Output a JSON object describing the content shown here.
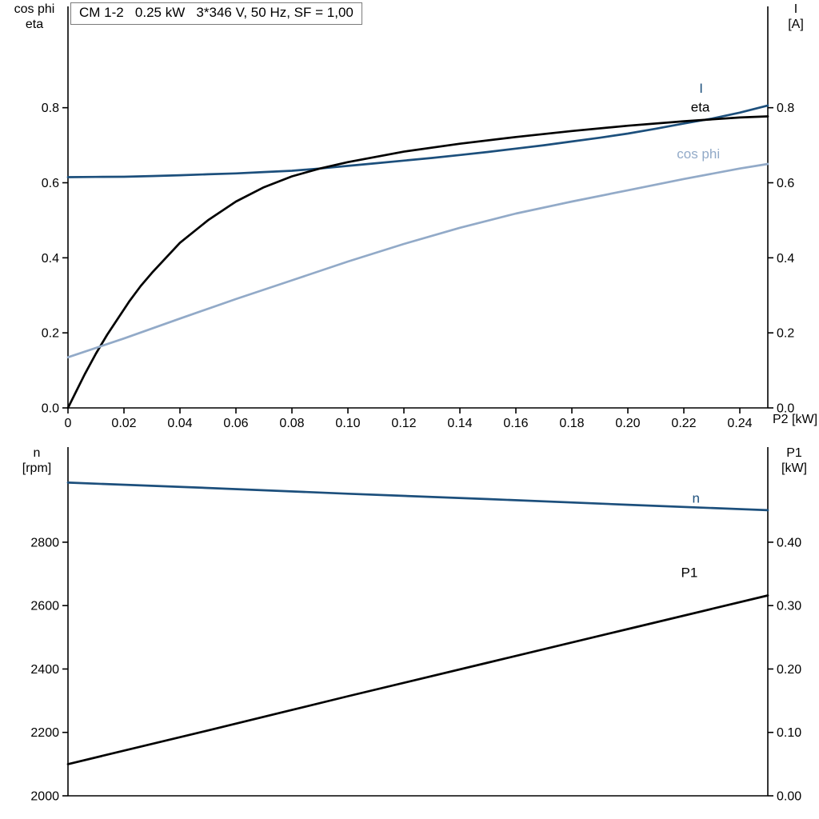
{
  "colors": {
    "dark_blue": "#1c4f7c",
    "light_blue": "#92aac8",
    "black": "#000000",
    "axis": "#000000"
  },
  "chart_data": [
    {
      "type": "line",
      "name": "chart-top-motor-electrical",
      "title": "CM 1-2   0.25 kW   3*346 V, 50 Hz, SF = 1,00",
      "xlabel": "P2 [kW]",
      "ylabel_left_line1": "cos phi",
      "ylabel_left_line2": "eta",
      "ylabel_right_line1": "I",
      "ylabel_right_line2": "[A]",
      "grid": false,
      "legend": "end-of-line labels",
      "xlim": [
        0,
        0.25
      ],
      "x_ticks": [
        0,
        0.02,
        0.04,
        0.06,
        0.08,
        0.1,
        0.12,
        0.14,
        0.16,
        0.18,
        0.2,
        0.22,
        0.24
      ],
      "x_tick_labels": [
        "0",
        "0.02",
        "0.04",
        "0.06",
        "0.08",
        "0.10",
        "0.12",
        "0.14",
        "0.16",
        "0.18",
        "0.20",
        "0.22",
        "0.24"
      ],
      "ylim_left": [
        0,
        1.07
      ],
      "y_ticks_left": [
        0,
        0.2,
        0.4,
        0.6,
        0.8
      ],
      "y_tick_labels_left": [
        "0.0",
        "0.2",
        "0.4",
        "0.6",
        "0.8"
      ],
      "ylim_right": [
        0,
        1.07
      ],
      "y_ticks_right": [
        0,
        0.2,
        0.4,
        0.6,
        0.8
      ],
      "y_tick_labels_right": [
        "0.0",
        "0.2",
        "0.4",
        "0.6",
        "0.8"
      ],
      "series": [
        {
          "name": "I",
          "axis": "right",
          "color": "#1c4f7c",
          "x": [
            0,
            0.01,
            0.02,
            0.03,
            0.04,
            0.05,
            0.06,
            0.07,
            0.08,
            0.09,
            0.1,
            0.11,
            0.12,
            0.13,
            0.14,
            0.15,
            0.16,
            0.17,
            0.18,
            0.19,
            0.2,
            0.21,
            0.22,
            0.23,
            0.24,
            0.25
          ],
          "y": [
            0.615,
            0.6155,
            0.616,
            0.618,
            0.62,
            0.6225,
            0.625,
            0.6285,
            0.632,
            0.638,
            0.645,
            0.652,
            0.659,
            0.666,
            0.674,
            0.682,
            0.691,
            0.7,
            0.71,
            0.72,
            0.731,
            0.744,
            0.758,
            0.771,
            0.787,
            0.806
          ]
        },
        {
          "name": "eta",
          "axis": "left",
          "color": "#000000",
          "x": [
            0,
            0.003,
            0.006,
            0.01,
            0.014,
            0.018,
            0.022,
            0.026,
            0.03,
            0.035,
            0.04,
            0.05,
            0.06,
            0.07,
            0.08,
            0.09,
            0.1,
            0.12,
            0.14,
            0.16,
            0.18,
            0.2,
            0.22,
            0.24,
            0.25
          ],
          "y": [
            0,
            0.045,
            0.09,
            0.145,
            0.195,
            0.24,
            0.285,
            0.325,
            0.36,
            0.4,
            0.44,
            0.5,
            0.55,
            0.588,
            0.617,
            0.638,
            0.655,
            0.683,
            0.704,
            0.722,
            0.738,
            0.752,
            0.764,
            0.774,
            0.777
          ]
        },
        {
          "name": "cos phi",
          "axis": "left",
          "color": "#92aac8",
          "x": [
            0,
            0.02,
            0.04,
            0.06,
            0.08,
            0.1,
            0.12,
            0.14,
            0.16,
            0.18,
            0.2,
            0.22,
            0.24,
            0.25
          ],
          "y": [
            0.135,
            0.185,
            0.238,
            0.29,
            0.34,
            0.39,
            0.437,
            0.48,
            0.518,
            0.55,
            0.58,
            0.61,
            0.638,
            0.65
          ]
        }
      ],
      "annotations": [
        {
          "text": "I",
          "x": 0.2255,
          "y": 0.84,
          "axis": "right",
          "color": "#1c4f7c"
        },
        {
          "text": "eta",
          "x": 0.2225,
          "y": 0.79,
          "axis": "left",
          "color": "#000000"
        },
        {
          "text": "cos phi",
          "x": 0.2175,
          "y": 0.665,
          "axis": "left",
          "color": "#92aac8"
        }
      ]
    },
    {
      "type": "line",
      "name": "chart-bottom-speed-power",
      "title": "",
      "xlabel": "",
      "ylabel_left_line1": "n",
      "ylabel_left_line2": "[rpm]",
      "ylabel_right_line1": "P1",
      "ylabel_right_line2": "[kW]",
      "grid": false,
      "legend": "end-of-line labels",
      "xlim": [
        0,
        0.25
      ],
      "x_ticks": [],
      "x_tick_labels": [],
      "ylim_left": [
        2000,
        3100
      ],
      "y_ticks_left": [
        2000,
        2200,
        2400,
        2600,
        2800
      ],
      "y_tick_labels_left": [
        "2000",
        "2200",
        "2400",
        "2600",
        "2800"
      ],
      "ylim_right": [
        0,
        0.55
      ],
      "y_ticks_right": [
        0,
        0.1,
        0.2,
        0.3,
        0.4
      ],
      "y_tick_labels_right": [
        "0.00",
        "0.10",
        "0.20",
        "0.30",
        "0.40"
      ],
      "series": [
        {
          "name": "n",
          "axis": "left",
          "color": "#1c4f7c",
          "x": [
            0,
            0.05,
            0.1,
            0.15,
            0.2,
            0.25
          ],
          "y": [
            2988,
            2971,
            2953,
            2936,
            2918,
            2901
          ]
        },
        {
          "name": "P1",
          "axis": "right",
          "color": "#000000",
          "x": [
            0,
            0.05,
            0.1,
            0.15,
            0.2,
            0.25
          ],
          "y": [
            0.05,
            0.103,
            0.157,
            0.21,
            0.263,
            0.316
          ]
        }
      ],
      "annotations": [
        {
          "text": "n",
          "x": 0.223,
          "y": 2925,
          "axis": "left",
          "color": "#1c4f7c"
        },
        {
          "text": "P1",
          "x": 0.219,
          "y": 0.345,
          "axis": "right",
          "color": "#000000"
        }
      ]
    }
  ]
}
